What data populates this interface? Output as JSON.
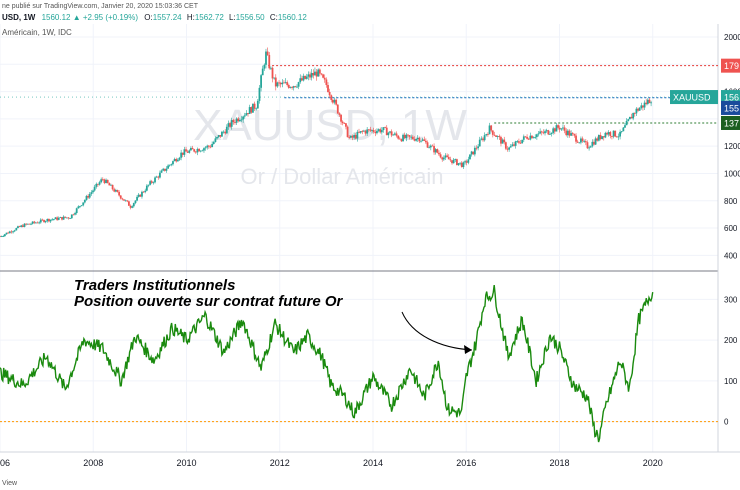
{
  "header": {
    "published_line": "ne publié sur TradingView.com, Janvier 20, 2020 15:03:36 CET",
    "symbol": "USD, 1W",
    "ohlc_change": "1560.12 ▲ +2.95 (+0.19%)",
    "o_label": "O:",
    "o_value": "1557.24",
    "h_label": "H:",
    "h_value": "1562.72",
    "l_label": "L:",
    "l_value": "1556.50",
    "c_label": "C:",
    "c_value": "1560.12",
    "subtitle": "Américain, 1W, IDC"
  },
  "watermark": {
    "symbol": "XAUUSD, 1W",
    "name": "Or / Dollar Américain"
  },
  "annotation": {
    "line1": "Traders Institutionnels",
    "line2": "Position ouverte sur contrat future Or"
  },
  "footer": {
    "brand": "View"
  },
  "price_tags": [
    {
      "name": "price-tag-1790",
      "text": "179",
      "color": "#ef5350"
    },
    {
      "name": "price-tag-xauusd",
      "text": "XAUUSD",
      "color": "#26a69a"
    },
    {
      "name": "price-tag-1560",
      "text": "156",
      "color": "#26a69a"
    },
    {
      "name": "price-tag-1555",
      "text": "155",
      "color": "#1a4b9c"
    },
    {
      "name": "price-tag-1370",
      "text": "137",
      "color": "#1b5e20"
    }
  ],
  "colors": {
    "up": "#26a69a",
    "down": "#ef5350",
    "line": "#1a8a0e",
    "zero": "#ff9800",
    "resistance": "#e53935",
    "support": "#2e7d32",
    "current": "#1565c0"
  },
  "chart_data": [
    {
      "type": "candlestick",
      "title": "XAUUSD, 1W",
      "x_axis": {
        "unit": "year",
        "range": [
          2006,
          2021.4
        ],
        "ticks": [
          "06",
          "2008",
          "2010",
          "2012",
          "2014",
          "2016",
          "2018",
          "2020"
        ]
      },
      "y_axis": {
        "range": [
          320,
          2080
        ],
        "ticks": [
          "400",
          "600",
          "800",
          "1000",
          "1200",
          "1400",
          "1600",
          "1800",
          "2000"
        ],
        "grid": true
      },
      "series": [
        {
          "x": [
            2006.0,
            2006.5,
            2007.0,
            2007.5,
            2008.0,
            2008.2,
            2008.8,
            2009.2,
            2009.9,
            2010.5,
            2011.0,
            2011.5,
            2011.7,
            2011.9,
            2012.3,
            2012.8,
            2013.0,
            2013.3,
            2013.5,
            2013.8,
            2014.2,
            2014.6,
            2015.0,
            2015.5,
            2015.95,
            2016.5,
            2016.9,
            2017.3,
            2017.7,
            2018.0,
            2018.6,
            2019.0,
            2019.3,
            2019.6,
            2019.8,
            2020.0
          ],
          "y": [
            540,
            620,
            660,
            680,
            880,
            960,
            760,
            920,
            1150,
            1200,
            1380,
            1500,
            1880,
            1650,
            1650,
            1740,
            1650,
            1420,
            1250,
            1310,
            1320,
            1260,
            1260,
            1120,
            1060,
            1330,
            1180,
            1270,
            1300,
            1340,
            1200,
            1300,
            1280,
            1450,
            1500,
            1560
          ]
        }
      ],
      "levels": [
        {
          "value": 1790,
          "style": "dotted"
        },
        {
          "value": 1555,
          "style": "dotted"
        },
        {
          "value": 1370,
          "style": "dotted"
        }
      ]
    },
    {
      "type": "line",
      "series": [
        {
          "name": "Traders Institutionnels",
          "x": [
            2006.0,
            2006.5,
            2007.0,
            2007.4,
            2007.8,
            2008.2,
            2008.6,
            2008.9,
            2009.3,
            2009.7,
            2010.0,
            2010.4,
            2010.8,
            2011.2,
            2011.6,
            2011.9,
            2012.3,
            2012.6,
            2012.9,
            2013.1,
            2013.4,
            2013.6,
            2014.0,
            2014.4,
            2014.8,
            2015.1,
            2015.4,
            2015.6,
            2015.9,
            2016.0,
            2016.2,
            2016.4,
            2016.6,
            2016.9,
            2017.2,
            2017.5,
            2017.8,
            2018.0,
            2018.3,
            2018.6,
            2018.75,
            2018.85,
            2019.0,
            2019.3,
            2019.5,
            2019.7,
            2019.9,
            2020.0
          ],
          "y": [
            120,
            90,
            160,
            80,
            200,
            180,
            100,
            210,
            150,
            230,
            200,
            260,
            170,
            250,
            130,
            240,
            170,
            210,
            160,
            90,
            60,
            20,
            110,
            40,
            130,
            60,
            150,
            30,
            20,
            110,
            190,
            300,
            320,
            160,
            250,
            100,
            210,
            180,
            90,
            60,
            -20,
            -40,
            40,
            150,
            80,
            250,
            300,
            320
          ]
        }
      ],
      "y_axis": {
        "range": [
          -60,
          360
        ],
        "ticks": [
          "0",
          "100",
          "200",
          "300"
        ]
      },
      "reference_line": 0
    }
  ]
}
